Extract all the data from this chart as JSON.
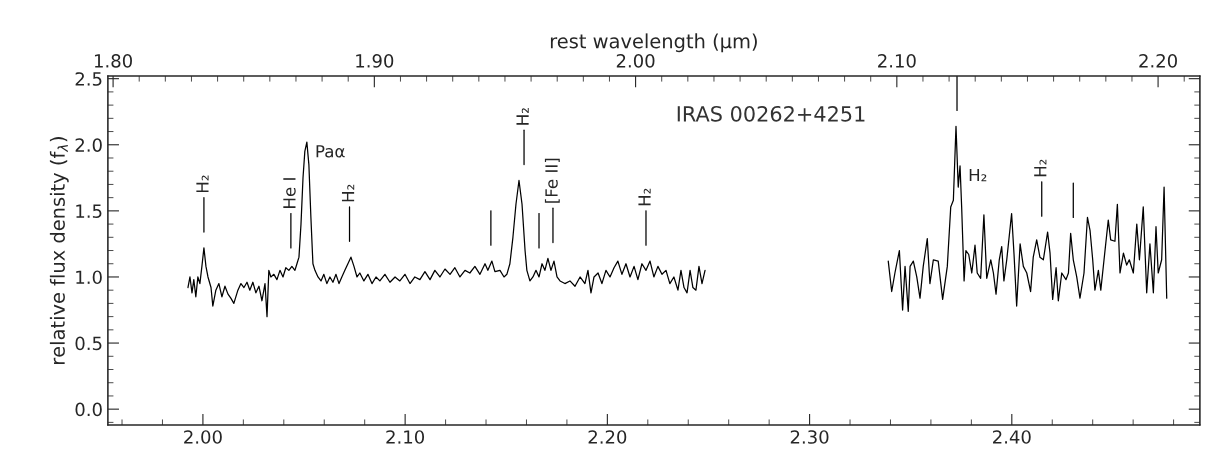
{
  "chart_data": {
    "type": "line",
    "title": "IRAS 00262+4251",
    "ylabel": "relative flux density (f$_{λ}$)",
    "x2label": "rest wavelength (μm)",
    "series": [
      {
        "color": "#000000",
        "x": [
          1.9926,
          1.9936,
          1.9946,
          1.9955,
          1.9965,
          1.9975,
          1.9985,
          1.9995,
          2.0005,
          2.0015,
          2.0025,
          2.004,
          2.0049,
          2.0064,
          2.0079,
          2.0094,
          2.0109,
          2.0124,
          2.0138,
          2.0153,
          2.0173,
          2.0188,
          2.0203,
          2.0218,
          2.0232,
          2.0247,
          2.0262,
          2.0277,
          2.0292,
          2.0307,
          2.0317,
          2.0326,
          2.0336,
          2.0351,
          2.0366,
          2.0381,
          2.0396,
          2.041,
          2.0425,
          2.044,
          2.0455,
          2.0465,
          2.0475,
          2.0485,
          2.0495,
          2.0504,
          2.0514,
          2.0524,
          2.0534,
          2.0544,
          2.0554,
          2.0569,
          2.0584,
          2.0598,
          2.0613,
          2.0628,
          2.0643,
          2.0658,
          2.0673,
          2.0687,
          2.0702,
          2.0717,
          2.0732,
          2.0747,
          2.0762,
          2.0776,
          2.0796,
          2.0816,
          2.0836,
          2.0856,
          2.0875,
          2.09,
          2.0925,
          2.095,
          2.0974,
          2.0999,
          2.1024,
          2.1048,
          2.1073,
          2.1098,
          2.1123,
          2.1147,
          2.1172,
          2.1197,
          2.1222,
          2.1246,
          2.1271,
          2.1296,
          2.132,
          2.1345,
          2.137,
          2.1395,
          2.1409,
          2.1429,
          2.1444,
          2.1469,
          2.1489,
          2.1503,
          2.1518,
          2.1533,
          2.1548,
          2.1563,
          2.1578,
          2.1593,
          2.1602,
          2.1617,
          2.1632,
          2.1647,
          2.1662,
          2.1677,
          2.1691,
          2.1706,
          2.1721,
          2.1736,
          2.1751,
          2.1766,
          2.179,
          2.1815,
          2.184,
          2.1865,
          2.1889,
          2.1904,
          2.1919,
          2.1934,
          2.1954,
          2.1973,
          2.1993,
          2.2013,
          2.2033,
          2.2052,
          2.2072,
          2.2092,
          2.2112,
          2.2132,
          2.2151,
          2.2171,
          2.2191,
          2.2211,
          2.223,
          2.225,
          2.227,
          2.229,
          2.2309,
          2.2329,
          2.2349,
          2.2364,
          2.2379,
          2.2394,
          2.2409,
          2.2423,
          2.2438,
          2.2453,
          2.2468,
          2.2483
        ],
        "values": [
          0.92,
          1.0,
          0.88,
          0.98,
          0.85,
          1.0,
          0.95,
          1.08,
          1.22,
          1.08,
          1.0,
          0.92,
          0.78,
          0.9,
          0.95,
          0.85,
          0.93,
          0.87,
          0.84,
          0.8,
          0.9,
          0.95,
          0.92,
          0.96,
          0.9,
          0.96,
          0.88,
          0.93,
          0.82,
          0.95,
          0.7,
          1.05,
          1.0,
          1.02,
          0.98,
          1.05,
          1.0,
          1.07,
          1.05,
          1.08,
          1.05,
          1.1,
          1.15,
          1.4,
          1.75,
          1.95,
          2.02,
          1.85,
          1.45,
          1.1,
          1.05,
          1.0,
          0.97,
          1.02,
          0.95,
          1.0,
          0.96,
          1.02,
          0.95,
          1.0,
          1.05,
          1.1,
          1.15,
          1.08,
          1.0,
          1.03,
          0.97,
          1.02,
          0.95,
          1.0,
          0.97,
          1.02,
          0.96,
          1.0,
          0.97,
          1.02,
          0.95,
          1.0,
          0.98,
          1.04,
          0.98,
          1.05,
          1.0,
          1.06,
          1.02,
          1.07,
          1.0,
          1.05,
          1.03,
          1.08,
          1.02,
          1.1,
          1.05,
          1.12,
          1.04,
          1.05,
          1.0,
          1.02,
          1.1,
          1.3,
          1.55,
          1.73,
          1.55,
          1.2,
          1.05,
          0.97,
          1.0,
          1.05,
          1.0,
          1.1,
          1.05,
          1.14,
          1.05,
          1.12,
          1.0,
          0.97,
          0.95,
          0.97,
          0.93,
          1.0,
          0.95,
          1.05,
          0.88,
          1.0,
          1.03,
          0.95,
          1.05,
          1.0,
          1.07,
          1.12,
          1.02,
          1.1,
          1.0,
          1.08,
          0.98,
          1.1,
          1.05,
          1.12,
          1.0,
          1.08,
          1.02,
          1.05,
          0.95,
          1.0,
          0.9,
          1.05,
          0.92,
          0.88,
          1.05,
          0.92,
          0.9,
          1.08,
          0.95,
          1.05
        ]
      },
      {
        "color": "#000000",
        "x": [
          2.3389,
          2.3406,
          2.3422,
          2.3444,
          2.346,
          2.3472,
          2.3488,
          2.3497,
          2.3513,
          2.353,
          2.3546,
          2.3562,
          2.3582,
          2.3595,
          2.3612,
          2.3636,
          2.3658,
          2.3681,
          2.3698,
          2.3711,
          2.3724,
          2.3735,
          2.3744,
          2.3752,
          2.3764,
          2.3773,
          2.3787,
          2.3802,
          2.3818,
          2.3829,
          2.3846,
          2.3862,
          2.3876,
          2.3896,
          2.3909,
          2.3922,
          2.3938,
          2.395,
          2.3961,
          2.3975,
          2.3999,
          2.4011,
          2.4024,
          2.4041,
          2.4057,
          2.4074,
          2.4093,
          2.4106,
          2.4123,
          2.4139,
          2.4156,
          2.4177,
          2.4189,
          2.4202,
          2.4219,
          2.423,
          2.4247,
          2.4268,
          2.428,
          2.4291,
          2.4304,
          2.4321,
          2.4337,
          2.4357,
          2.4374,
          2.4387,
          2.44,
          2.4411,
          2.4428,
          2.444,
          2.4456,
          2.4477,
          2.4489,
          2.451,
          2.4522,
          2.4535,
          2.4552,
          2.4568,
          2.4581,
          2.4601,
          2.4618,
          2.4631,
          2.465,
          2.4667,
          2.4683,
          2.47,
          2.4713,
          2.4724,
          2.4741,
          2.4753,
          2.4766
        ],
        "values": [
          1.12,
          0.89,
          1.03,
          1.2,
          0.75,
          1.08,
          0.74,
          1.08,
          1.12,
          1.0,
          0.84,
          1.08,
          1.29,
          0.95,
          1.13,
          1.12,
          0.83,
          1.08,
          1.53,
          1.58,
          2.14,
          1.68,
          1.84,
          1.53,
          0.97,
          1.2,
          1.17,
          1.03,
          1.24,
          1.03,
          0.99,
          1.47,
          0.99,
          1.13,
          1.03,
          0.87,
          1.13,
          1.23,
          0.97,
          1.13,
          1.48,
          1.17,
          0.78,
          1.25,
          1.08,
          1.03,
          0.89,
          1.15,
          1.28,
          1.15,
          1.13,
          1.34,
          1.18,
          0.83,
          1.07,
          0.82,
          1.03,
          0.98,
          1.03,
          1.33,
          1.13,
          1.0,
          0.84,
          1.03,
          1.45,
          1.35,
          1.13,
          0.9,
          1.05,
          0.9,
          1.13,
          1.43,
          1.28,
          1.27,
          1.55,
          1.03,
          1.18,
          1.09,
          1.13,
          1.03,
          1.4,
          1.13,
          1.53,
          0.88,
          1.25,
          0.88,
          1.38,
          1.03,
          1.13,
          1.68,
          0.84
        ]
      }
    ],
    "ref_lines": [
      {
        "axis": "x",
        "value": 2.0005,
        "label": "H₂"
      },
      {
        "axis": "x",
        "value": 2.0435,
        "label": "He I"
      },
      {
        "axis": "x",
        "value": 2.0725,
        "label": "H₂"
      },
      {
        "axis": "x",
        "value": 2.1424
      },
      {
        "axis": "x",
        "value": 2.1588,
        "label": "H₂"
      },
      {
        "axis": "x",
        "value": 2.1662
      },
      {
        "axis": "x",
        "value": 2.1731,
        "label": "[Fe II]"
      },
      {
        "axis": "x",
        "value": 2.2191,
        "label": "H₂"
      },
      {
        "axis": "x",
        "value": 2.3729
      },
      {
        "axis": "x",
        "value": 2.4148,
        "label": "H₂"
      },
      {
        "axis": "x",
        "value": 2.4304
      }
    ],
    "annotations": [
      {
        "text": "Paα",
        "x": 2.0514,
        "y": 2.02
      },
      {
        "text": "H₂",
        "x": 2.3744,
        "y": 1.84
      }
    ],
    "xlim": [
      1.953,
      2.493
    ],
    "xticks": [
      {
        "value": 2.0,
        "label": "2.00"
      },
      {
        "value": 2.1,
        "label": "2.10"
      },
      {
        "value": 2.2,
        "label": "2.20"
      },
      {
        "value": 2.3,
        "label": "2.30"
      },
      {
        "value": 2.4,
        "label": "2.40"
      }
    ],
    "x2lim": [
      1.798,
      2.216
    ],
    "x2ticks": [
      {
        "value": 1.8,
        "label": "1.80"
      },
      {
        "value": 1.9,
        "label": "1.90"
      },
      {
        "value": 2.0,
        "label": "2.00"
      },
      {
        "value": 2.1,
        "label": "2.10"
      },
      {
        "value": 2.2,
        "label": "2.20"
      }
    ],
    "ylim": [
      -0.12,
      2.52
    ],
    "yticks": [
      {
        "value": 0.0,
        "label": "0.0"
      },
      {
        "value": 0.5,
        "label": "0.5"
      },
      {
        "value": 1.0,
        "label": "1.0"
      },
      {
        "value": 1.5,
        "label": "1.5"
      },
      {
        "value": 2.0,
        "label": "2.0"
      },
      {
        "value": 2.5,
        "label": "2.5"
      }
    ],
    "grid": false,
    "legend": false,
    "line_style": "solid"
  }
}
